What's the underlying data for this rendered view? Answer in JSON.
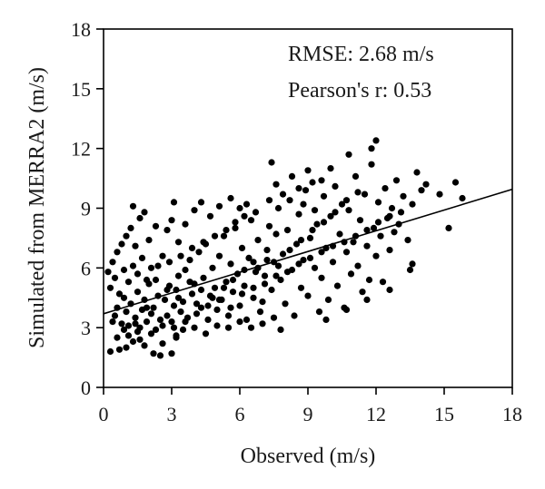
{
  "chart_data": {
    "type": "scatter",
    "title": "",
    "xlabel": "Observed (m/s)",
    "ylabel": "Simulated from MERRA2 (m/s)",
    "xlim": [
      0,
      18
    ],
    "ylim": [
      0,
      18
    ],
    "xticks": [
      "0",
      "3",
      "6",
      "9",
      "12",
      "15",
      "18"
    ],
    "yticks": [
      "0",
      "3",
      "6",
      "9",
      "12",
      "15",
      "18"
    ],
    "annotations": [
      "RMSE: 2.68 m/s",
      "Pearson's r: 0.53"
    ],
    "fit_line": {
      "x": [
        0,
        18
      ],
      "y": [
        3.7,
        9.95
      ]
    },
    "grid": false,
    "marker_color": "#000000",
    "line_color": "#000000",
    "points": [
      [
        0.3,
        1.8
      ],
      [
        0.7,
        1.9
      ],
      [
        1.0,
        2.0
      ],
      [
        1.3,
        2.3
      ],
      [
        1.8,
        2.1
      ],
      [
        2.2,
        1.7
      ],
      [
        2.5,
        1.6
      ],
      [
        3.0,
        1.7
      ],
      [
        3.2,
        2.6
      ],
      [
        1.5,
        2.8
      ],
      [
        0.4,
        3.3
      ],
      [
        0.5,
        3.6
      ],
      [
        0.6,
        4.0
      ],
      [
        0.8,
        3.2
      ],
      [
        0.9,
        4.5
      ],
      [
        1.0,
        3.8
      ],
      [
        1.1,
        3.1
      ],
      [
        1.2,
        4.2
      ],
      [
        1.4,
        3.5
      ],
      [
        1.5,
        4.8
      ],
      [
        1.6,
        3.0
      ],
      [
        1.7,
        3.9
      ],
      [
        1.8,
        4.4
      ],
      [
        1.9,
        3.3
      ],
      [
        2.0,
        5.2
      ],
      [
        2.1,
        3.7
      ],
      [
        2.2,
        4.0
      ],
      [
        2.3,
        2.9
      ],
      [
        2.4,
        4.6
      ],
      [
        2.5,
        3.4
      ],
      [
        0.3,
        5.0
      ],
      [
        0.5,
        5.5
      ],
      [
        0.7,
        4.7
      ],
      [
        0.9,
        5.9
      ],
      [
        1.1,
        5.3
      ],
      [
        1.3,
        6.1
      ],
      [
        1.5,
        5.7
      ],
      [
        1.7,
        6.5
      ],
      [
        1.9,
        5.4
      ],
      [
        2.1,
        6.0
      ],
      [
        0.2,
        5.8
      ],
      [
        0.4,
        6.3
      ],
      [
        0.6,
        6.8
      ],
      [
        0.8,
        7.2
      ],
      [
        1.0,
        7.6
      ],
      [
        1.2,
        8.0
      ],
      [
        1.4,
        7.1
      ],
      [
        1.6,
        8.5
      ],
      [
        1.8,
        8.8
      ],
      [
        2.0,
        7.4
      ],
      [
        1.3,
        9.1
      ],
      [
        2.3,
        8.1
      ],
      [
        2.6,
        6.6
      ],
      [
        2.8,
        7.9
      ],
      [
        3.0,
        8.4
      ],
      [
        3.1,
        9.3
      ],
      [
        2.9,
        5.1
      ],
      [
        2.7,
        4.4
      ],
      [
        2.6,
        3.1
      ],
      [
        2.8,
        3.6
      ],
      [
        3.0,
        3.3
      ],
      [
        3.1,
        4.1
      ],
      [
        3.2,
        4.9
      ],
      [
        3.3,
        5.6
      ],
      [
        3.4,
        3.8
      ],
      [
        3.5,
        4.3
      ],
      [
        3.6,
        5.9
      ],
      [
        3.7,
        3.5
      ],
      [
        3.8,
        6.4
      ],
      [
        3.9,
        4.7
      ],
      [
        4.0,
        5.2
      ],
      [
        4.1,
        3.7
      ],
      [
        4.2,
        6.8
      ],
      [
        4.3,
        4.0
      ],
      [
        4.4,
        5.5
      ],
      [
        4.5,
        7.2
      ],
      [
        4.6,
        3.4
      ],
      [
        4.7,
        4.6
      ],
      [
        4.8,
        6.0
      ],
      [
        4.9,
        5.0
      ],
      [
        5.0,
        3.9
      ],
      [
        5.1,
        6.6
      ],
      [
        5.2,
        4.4
      ],
      [
        5.3,
        7.6
      ],
      [
        5.4,
        5.3
      ],
      [
        5.5,
        3.6
      ],
      [
        5.6,
        6.2
      ],
      [
        5.7,
        4.8
      ],
      [
        5.8,
        8.0
      ],
      [
        5.9,
        5.7
      ],
      [
        6.0,
        4.1
      ],
      [
        6.1,
        7.0
      ],
      [
        6.2,
        5.1
      ],
      [
        6.3,
        3.4
      ],
      [
        6.4,
        6.5
      ],
      [
        6.5,
        8.4
      ],
      [
        6.6,
        4.5
      ],
      [
        6.7,
        5.8
      ],
      [
        6.8,
        7.4
      ],
      [
        6.9,
        3.8
      ],
      [
        3.3,
        7.3
      ],
      [
        3.6,
        8.2
      ],
      [
        4.0,
        8.9
      ],
      [
        4.3,
        9.3
      ],
      [
        4.7,
        8.6
      ],
      [
        5.1,
        9.1
      ],
      [
        5.6,
        9.5
      ],
      [
        6.0,
        9.0
      ],
      [
        6.3,
        9.2
      ],
      [
        3.2,
        2.5
      ],
      [
        3.5,
        2.9
      ],
      [
        4.0,
        3.0
      ],
      [
        4.5,
        2.7
      ],
      [
        5.0,
        3.1
      ],
      [
        5.5,
        3.0
      ],
      [
        6.0,
        3.3
      ],
      [
        6.5,
        3.0
      ],
      [
        7.0,
        3.2
      ],
      [
        7.5,
        3.5
      ],
      [
        7.8,
        2.9
      ],
      [
        7.0,
        4.3
      ],
      [
        7.1,
        5.6
      ],
      [
        7.2,
        6.9
      ],
      [
        7.3,
        8.1
      ],
      [
        7.4,
        4.9
      ],
      [
        7.5,
        6.3
      ],
      [
        7.6,
        7.7
      ],
      [
        7.7,
        9.0
      ],
      [
        7.8,
        5.4
      ],
      [
        7.9,
        6.7
      ],
      [
        8.0,
        4.2
      ],
      [
        8.1,
        7.9
      ],
      [
        8.2,
        9.4
      ],
      [
        8.3,
        5.9
      ],
      [
        8.4,
        3.6
      ],
      [
        8.5,
        7.2
      ],
      [
        8.6,
        8.7
      ],
      [
        8.7,
        5.0
      ],
      [
        8.8,
        6.4
      ],
      [
        8.9,
        9.9
      ],
      [
        9.0,
        4.6
      ],
      [
        9.1,
        7.5
      ],
      [
        9.2,
        10.3
      ],
      [
        9.3,
        6.0
      ],
      [
        9.4,
        8.2
      ],
      [
        9.5,
        3.8
      ],
      [
        9.6,
        5.5
      ],
      [
        9.7,
        9.6
      ],
      [
        9.8,
        7.0
      ],
      [
        9.9,
        4.4
      ],
      [
        10.0,
        8.6
      ],
      [
        10.1,
        6.3
      ],
      [
        10.2,
        10.1
      ],
      [
        10.3,
        5.1
      ],
      [
        10.4,
        7.7
      ],
      [
        10.5,
        9.2
      ],
      [
        10.6,
        4.0
      ],
      [
        10.7,
        6.8
      ],
      [
        10.8,
        8.9
      ],
      [
        10.9,
        5.7
      ],
      [
        11.0,
        7.3
      ],
      [
        11.1,
        10.6
      ],
      [
        11.2,
        6.1
      ],
      [
        11.3,
        8.4
      ],
      [
        11.4,
        4.8
      ],
      [
        11.5,
        9.7
      ],
      [
        11.6,
        7.1
      ],
      [
        11.7,
        5.4
      ],
      [
        11.8,
        11.2
      ],
      [
        11.9,
        8.0
      ],
      [
        12.0,
        6.6
      ],
      [
        12.1,
        9.3
      ],
      [
        12.2,
        7.6
      ],
      [
        12.3,
        5.3
      ],
      [
        12.4,
        10.0
      ],
      [
        12.5,
        8.5
      ],
      [
        12.6,
        6.9
      ],
      [
        12.7,
        9.0
      ],
      [
        12.8,
        7.8
      ],
      [
        12.9,
        10.4
      ],
      [
        13.0,
        8.2
      ],
      [
        13.2,
        9.6
      ],
      [
        13.4,
        7.4
      ],
      [
        13.6,
        6.2
      ],
      [
        13.8,
        10.8
      ],
      [
        14.0,
        9.9
      ],
      [
        12.0,
        12.4
      ],
      [
        11.8,
        12.0
      ],
      [
        7.4,
        11.3
      ],
      [
        10.8,
        11.7
      ],
      [
        14.8,
        9.7
      ],
      [
        15.2,
        8.0
      ],
      [
        15.8,
        9.5
      ],
      [
        15.5,
        10.3
      ],
      [
        14.2,
        10.2
      ],
      [
        13.5,
        5.9
      ],
      [
        12.6,
        4.9
      ],
      [
        11.6,
        4.4
      ],
      [
        10.7,
        3.9
      ],
      [
        9.8,
        3.4
      ],
      [
        7.6,
        10.2
      ],
      [
        8.3,
        10.6
      ],
      [
        9.0,
        10.9
      ],
      [
        9.6,
        10.4
      ],
      [
        10.0,
        11.0
      ],
      [
        8.8,
        9.2
      ],
      [
        9.3,
        8.9
      ],
      [
        8.6,
        10.0
      ],
      [
        7.9,
        9.7
      ],
      [
        7.3,
        9.4
      ],
      [
        6.7,
        8.8
      ],
      [
        6.2,
        8.6
      ],
      [
        5.8,
        8.3
      ],
      [
        5.4,
        7.9
      ],
      [
        4.9,
        7.6
      ],
      [
        4.4,
        7.3
      ],
      [
        3.9,
        7.0
      ],
      [
        3.4,
        6.6
      ],
      [
        2.9,
        6.3
      ],
      [
        2.4,
        6.1
      ],
      [
        1.9,
        4.0
      ],
      [
        1.4,
        3.2
      ],
      [
        0.9,
        2.9
      ],
      [
        0.6,
        2.5
      ],
      [
        1.1,
        2.6
      ],
      [
        1.6,
        2.4
      ],
      [
        2.1,
        2.7
      ],
      [
        2.6,
        2.2
      ],
      [
        3.1,
        3.0
      ],
      [
        3.6,
        3.3
      ],
      [
        4.1,
        4.2
      ],
      [
        4.6,
        4.1
      ],
      [
        5.1,
        4.4
      ],
      [
        5.6,
        4.0
      ],
      [
        6.1,
        4.7
      ],
      [
        6.6,
        5.0
      ],
      [
        7.1,
        5.2
      ],
      [
        7.6,
        5.6
      ],
      [
        8.1,
        5.8
      ],
      [
        8.6,
        6.2
      ],
      [
        9.1,
        6.5
      ],
      [
        9.6,
        6.8
      ],
      [
        10.1,
        7.1
      ],
      [
        10.6,
        7.3
      ],
      [
        11.1,
        7.6
      ],
      [
        11.6,
        7.9
      ],
      [
        12.1,
        8.3
      ],
      [
        12.6,
        8.6
      ],
      [
        13.1,
        8.8
      ],
      [
        13.6,
        9.2
      ],
      [
        6.8,
        6.0
      ],
      [
        7.2,
        6.4
      ],
      [
        7.7,
        6.1
      ],
      [
        8.2,
        6.9
      ],
      [
        8.7,
        7.4
      ],
      [
        9.2,
        7.9
      ],
      [
        9.7,
        8.3
      ],
      [
        10.2,
        8.8
      ],
      [
        10.7,
        9.4
      ],
      [
        11.2,
        9.8
      ],
      [
        5.3,
        5.0
      ],
      [
        5.7,
        5.4
      ],
      [
        6.2,
        5.9
      ],
      [
        6.6,
        6.3
      ],
      [
        4.8,
        4.5
      ],
      [
        4.3,
        4.9
      ],
      [
        3.8,
        5.3
      ],
      [
        3.3,
        4.5
      ],
      [
        2.8,
        4.9
      ],
      [
        2.3,
        5.4
      ]
    ]
  }
}
